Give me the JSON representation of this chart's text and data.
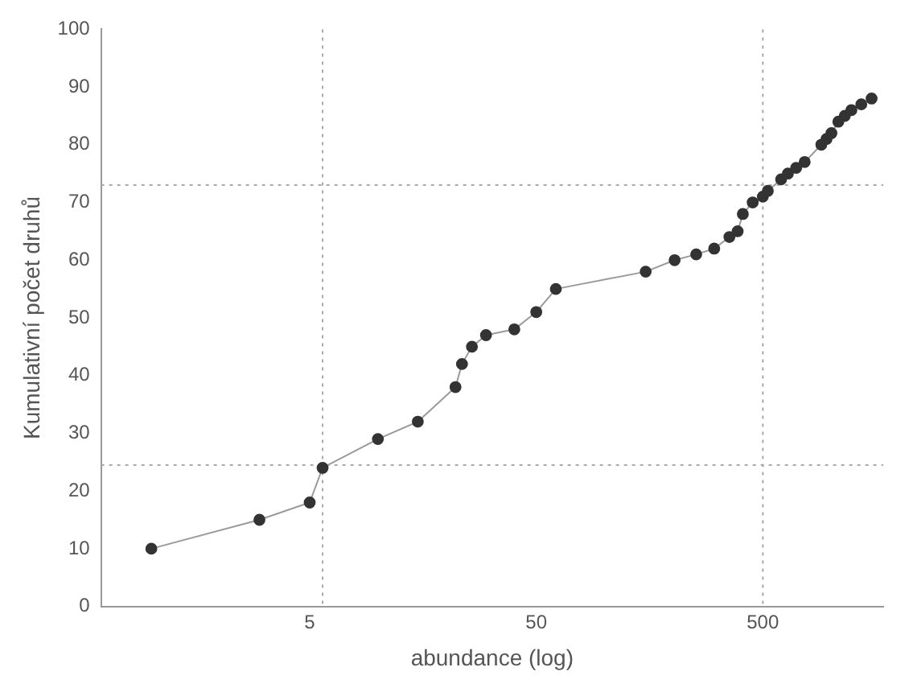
{
  "chart_data": {
    "type": "line",
    "xlabel": "abundance (log)",
    "ylabel": "Kumulativní počet druhů",
    "log": "x",
    "xlim": [
      0.6,
      1700
    ],
    "xticks": [
      5,
      50,
      500
    ],
    "ylim": [
      0,
      100
    ],
    "yticks": [
      0,
      10,
      20,
      30,
      40,
      50,
      60,
      70,
      80,
      90,
      100
    ],
    "grid": false,
    "legend": false,
    "marker": "circle",
    "line_style": "solid",
    "series": [
      {
        "color": "#333333",
        "x": [
          1,
          3,
          5,
          5.7,
          10,
          15,
          22,
          23.5,
          26,
          30,
          40,
          50,
          61,
          152,
          204,
          254,
          305,
          356,
          387,
          408,
          451,
          500,
          526,
          602,
          645,
          702,
          765,
          906,
          955,
          1004,
          1077,
          1150,
          1230,
          1360,
          1510
        ],
        "values": [
          10,
          15,
          18,
          24,
          29,
          32,
          38,
          42,
          45,
          47,
          48,
          51,
          55,
          58,
          60,
          61,
          62,
          64,
          65,
          68,
          70,
          71,
          72,
          74,
          75,
          76,
          77,
          80,
          81,
          82,
          84,
          85,
          86,
          87,
          88
        ]
      }
    ],
    "ref_lines": [
      {
        "axis": "y",
        "value": 24.5,
        "color": "#aaaaaa",
        "line_style": "dotted"
      },
      {
        "axis": "y",
        "value": 73,
        "color": "#aaaaaa",
        "line_style": "dotted"
      },
      {
        "axis": "x",
        "value": 5.7,
        "color": "#aaaaaa",
        "line_style": "dotted"
      },
      {
        "axis": "x",
        "value": 500,
        "color": "#aaaaaa",
        "line_style": "dotted"
      }
    ]
  }
}
